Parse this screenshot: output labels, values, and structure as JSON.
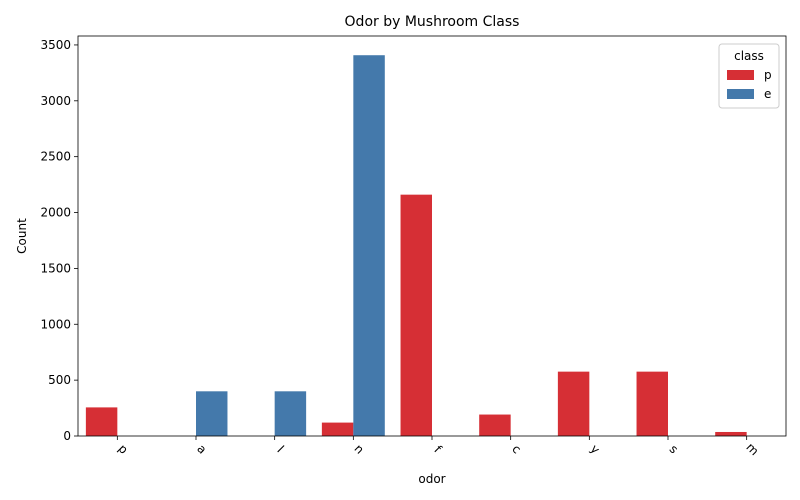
{
  "chart_data": {
    "type": "bar",
    "title": "Odor by Mushroom Class",
    "xlabel": "odor",
    "ylabel": "Count",
    "categories": [
      "p",
      "a",
      "l",
      "n",
      "f",
      "c",
      "y",
      "s",
      "m"
    ],
    "series": [
      {
        "name": "p",
        "color": "#d62f35",
        "values": [
          256,
          0,
          0,
          120,
          2160,
          192,
          576,
          576,
          36
        ]
      },
      {
        "name": "e",
        "color": "#4479ab",
        "values": [
          0,
          400,
          400,
          3408,
          0,
          0,
          0,
          0,
          0
        ]
      }
    ],
    "ylim": [
      0,
      3580
    ],
    "yticks": [
      0,
      500,
      1000,
      1500,
      2000,
      2500,
      3000,
      3500
    ],
    "grid": false,
    "legend": {
      "title": "class",
      "position": "top-right"
    }
  }
}
